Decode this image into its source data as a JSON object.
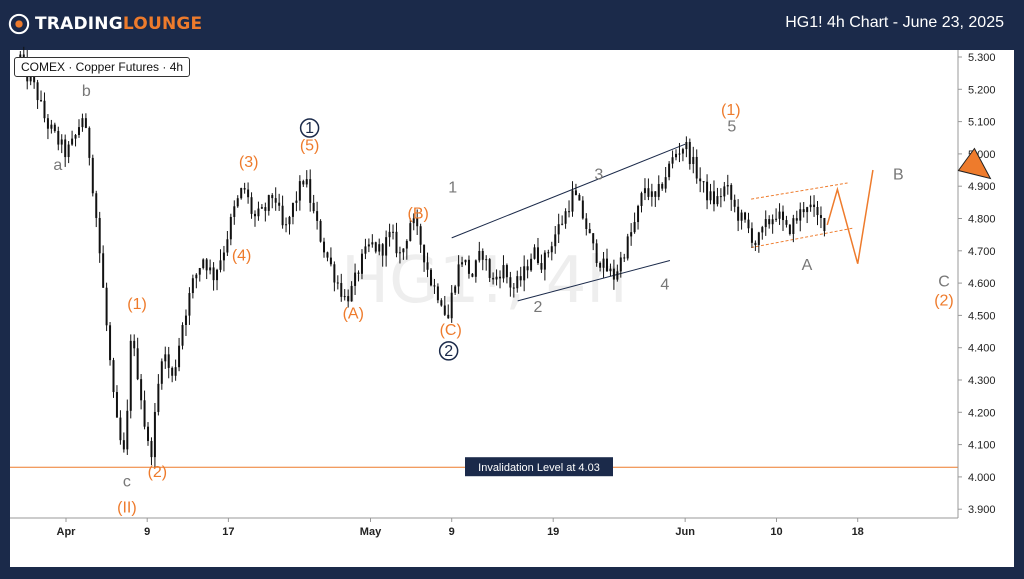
{
  "header": {
    "logo_text_1": "TRADING",
    "logo_text_2": "LOUNGE",
    "title": "HG1! 4h Chart - June 23, 2025"
  },
  "symbol_label": "COMEX · Copper Futures · 4h",
  "colors": {
    "background": "#1b2a4a",
    "orange": "#ee7b2c",
    "gray": "#777777",
    "navy": "#1b2a4a",
    "candle": "#111111"
  },
  "chart_data": {
    "type": "candlestick",
    "watermark": "HG1!, 4h",
    "ylim": [
      3.85,
      5.33
    ],
    "y_ticks": [
      "5.300",
      "5.200",
      "5.100",
      "5.000",
      "4.900",
      "4.800",
      "4.700",
      "4.600",
      "4.500",
      "4.400",
      "4.300",
      "4.200",
      "4.100",
      "4.000",
      "3.900"
    ],
    "x_ticks": [
      {
        "label": "Apr",
        "day": 0
      },
      {
        "label": "9",
        "day": 8
      },
      {
        "label": "17",
        "day": 16
      },
      {
        "label": "May",
        "day": 30
      },
      {
        "label": "9",
        "day": 38
      },
      {
        "label": "19",
        "day": 48
      },
      {
        "label": "Jun",
        "day": 61
      },
      {
        "label": "10",
        "day": 70
      },
      {
        "label": "18",
        "day": 78
      }
    ],
    "price_path": [
      [
        -4.5,
        5.3
      ],
      [
        -4,
        5.25
      ],
      [
        -3,
        5.2
      ],
      [
        -2,
        5.1
      ],
      [
        -1,
        5.05
      ],
      [
        0,
        5.0
      ],
      [
        0.8,
        5.04
      ],
      [
        1.6,
        5.12
      ],
      [
        2.3,
        5.0
      ],
      [
        3,
        4.8
      ],
      [
        3.6,
        4.6
      ],
      [
        4.2,
        4.4
      ],
      [
        4.8,
        4.2
      ],
      [
        5.4,
        4.1
      ],
      [
        5.9,
        4.05
      ],
      [
        6.3,
        4.45
      ],
      [
        7.2,
        4.3
      ],
      [
        7.6,
        4.2
      ],
      [
        8,
        4.1
      ],
      [
        8.4,
        4.08
      ],
      [
        9.5,
        4.4
      ],
      [
        10.5,
        4.3
      ],
      [
        11.5,
        4.48
      ],
      [
        12.5,
        4.6
      ],
      [
        13.5,
        4.68
      ],
      [
        14.5,
        4.62
      ],
      [
        15.5,
        4.7
      ],
      [
        16.5,
        4.82
      ],
      [
        17.5,
        4.9
      ],
      [
        18.5,
        4.8
      ],
      [
        19.5,
        4.82
      ],
      [
        20.5,
        4.88
      ],
      [
        21.5,
        4.75
      ],
      [
        22.5,
        4.85
      ],
      [
        23.5,
        4.93
      ],
      [
        24.5,
        4.8
      ],
      [
        25.5,
        4.7
      ],
      [
        26.5,
        4.62
      ],
      [
        27.5,
        4.55
      ],
      [
        28.2,
        4.58
      ],
      [
        29,
        4.66
      ],
      [
        30,
        4.72
      ],
      [
        31,
        4.7
      ],
      [
        32,
        4.75
      ],
      [
        33,
        4.68
      ],
      [
        34,
        4.8
      ],
      [
        35,
        4.72
      ],
      [
        36,
        4.6
      ],
      [
        37,
        4.55
      ],
      [
        37.6,
        4.48
      ],
      [
        38.2,
        4.6
      ],
      [
        39,
        4.68
      ],
      [
        40,
        4.62
      ],
      [
        41,
        4.7
      ],
      [
        42,
        4.6
      ],
      [
        43,
        4.65
      ],
      [
        44,
        4.58
      ],
      [
        45,
        4.62
      ],
      [
        46,
        4.7
      ],
      [
        47,
        4.66
      ],
      [
        48,
        4.74
      ],
      [
        49,
        4.8
      ],
      [
        50,
        4.88
      ],
      [
        51,
        4.8
      ],
      [
        52,
        4.7
      ],
      [
        53,
        4.65
      ],
      [
        54,
        4.62
      ],
      [
        55,
        4.7
      ],
      [
        56,
        4.78
      ],
      [
        57,
        4.9
      ],
      [
        58,
        4.85
      ],
      [
        59,
        4.93
      ],
      [
        60,
        5.0
      ],
      [
        61,
        5.03
      ],
      [
        62,
        4.95
      ],
      [
        63,
        4.88
      ],
      [
        64,
        4.85
      ],
      [
        65,
        4.9
      ],
      [
        66,
        4.82
      ],
      [
        67,
        4.78
      ],
      [
        68,
        4.72
      ],
      [
        69,
        4.78
      ],
      [
        70,
        4.82
      ],
      [
        71,
        4.76
      ],
      [
        72,
        4.8
      ],
      [
        73,
        4.85
      ],
      [
        74,
        4.8
      ],
      [
        75,
        4.78
      ]
    ],
    "projection_path": [
      [
        75,
        4.78
      ],
      [
        76,
        4.89
      ],
      [
        78,
        4.66
      ],
      [
        79.5,
        4.95
      ]
    ],
    "trendlines": [
      {
        "from": [
          38,
          4.74
        ],
        "to": [
          61,
          5.03
        ],
        "color": "#1b2a4a",
        "dash": false
      },
      {
        "from": [
          44.5,
          4.545
        ],
        "to": [
          59.5,
          4.67
        ],
        "color": "#1b2a4a",
        "dash": false
      },
      {
        "from": [
          67.5,
          4.86
        ],
        "to": [
          77,
          4.91
        ],
        "color": "#ee7b2c",
        "dash": true
      },
      {
        "from": [
          67.5,
          4.71
        ],
        "to": [
          77.5,
          4.77
        ],
        "color": "#ee7b2c",
        "dash": true
      }
    ],
    "wave_labels": [
      {
        "text": "b",
        "day": 2,
        "price": 5.18,
        "color": "#777777"
      },
      {
        "text": "a",
        "day": -0.8,
        "price": 4.95,
        "color": "#777777"
      },
      {
        "text": "(1)",
        "day": 7,
        "price": 4.52,
        "color": "#ee7b2c"
      },
      {
        "text": "c",
        "day": 6,
        "price": 3.97,
        "color": "#777777"
      },
      {
        "text": "(2)",
        "day": 9,
        "price": 4.0,
        "color": "#ee7b2c"
      },
      {
        "text": "(II)",
        "day": 6,
        "price": 3.89,
        "color": "#ee7b2c"
      },
      {
        "text": "(3)",
        "day": 18,
        "price": 4.96,
        "color": "#ee7b2c"
      },
      {
        "text": "(4)",
        "day": 17.3,
        "price": 4.67,
        "color": "#ee7b2c"
      },
      {
        "text": "(5)",
        "day": 24,
        "price": 5.01,
        "color": "#ee7b2c"
      },
      {
        "text": "(A)",
        "day": 28.3,
        "price": 4.49,
        "color": "#ee7b2c"
      },
      {
        "text": "(B)",
        "day": 34.7,
        "price": 4.8,
        "color": "#ee7b2c"
      },
      {
        "text": "1",
        "day": 38.1,
        "price": 4.88,
        "color": "#777777"
      },
      {
        "text": "(C)",
        "day": 37.9,
        "price": 4.44,
        "color": "#ee7b2c"
      },
      {
        "text": "2",
        "day": 46.5,
        "price": 4.51,
        "color": "#777777"
      },
      {
        "text": "3",
        "day": 52.5,
        "price": 4.92,
        "color": "#777777"
      },
      {
        "text": "4",
        "day": 59,
        "price": 4.58,
        "color": "#777777"
      },
      {
        "text": "5",
        "day": 65.6,
        "price": 5.07,
        "color": "#777777"
      },
      {
        "text": "(1)",
        "day": 65.5,
        "price": 5.12,
        "color": "#ee7b2c"
      },
      {
        "text": "A",
        "day": 73,
        "price": 4.64,
        "color": "#777777"
      },
      {
        "text": "B",
        "day": 82,
        "price": 4.92,
        "color": "#777777"
      },
      {
        "text": "C",
        "day": 86.5,
        "price": 4.59,
        "color": "#777777"
      },
      {
        "text": "(2)",
        "day": 86.5,
        "price": 4.53,
        "color": "#ee7b2c"
      }
    ],
    "circled_labels": [
      {
        "text": "1",
        "day": 24,
        "price": 5.08
      },
      {
        "text": "2",
        "day": 37.7,
        "price": 4.39
      }
    ],
    "invalidation": {
      "price": 4.03,
      "label": "Invalidation Level at 4.03"
    },
    "arrow": {
      "day": 89.5,
      "price": 4.93
    }
  }
}
